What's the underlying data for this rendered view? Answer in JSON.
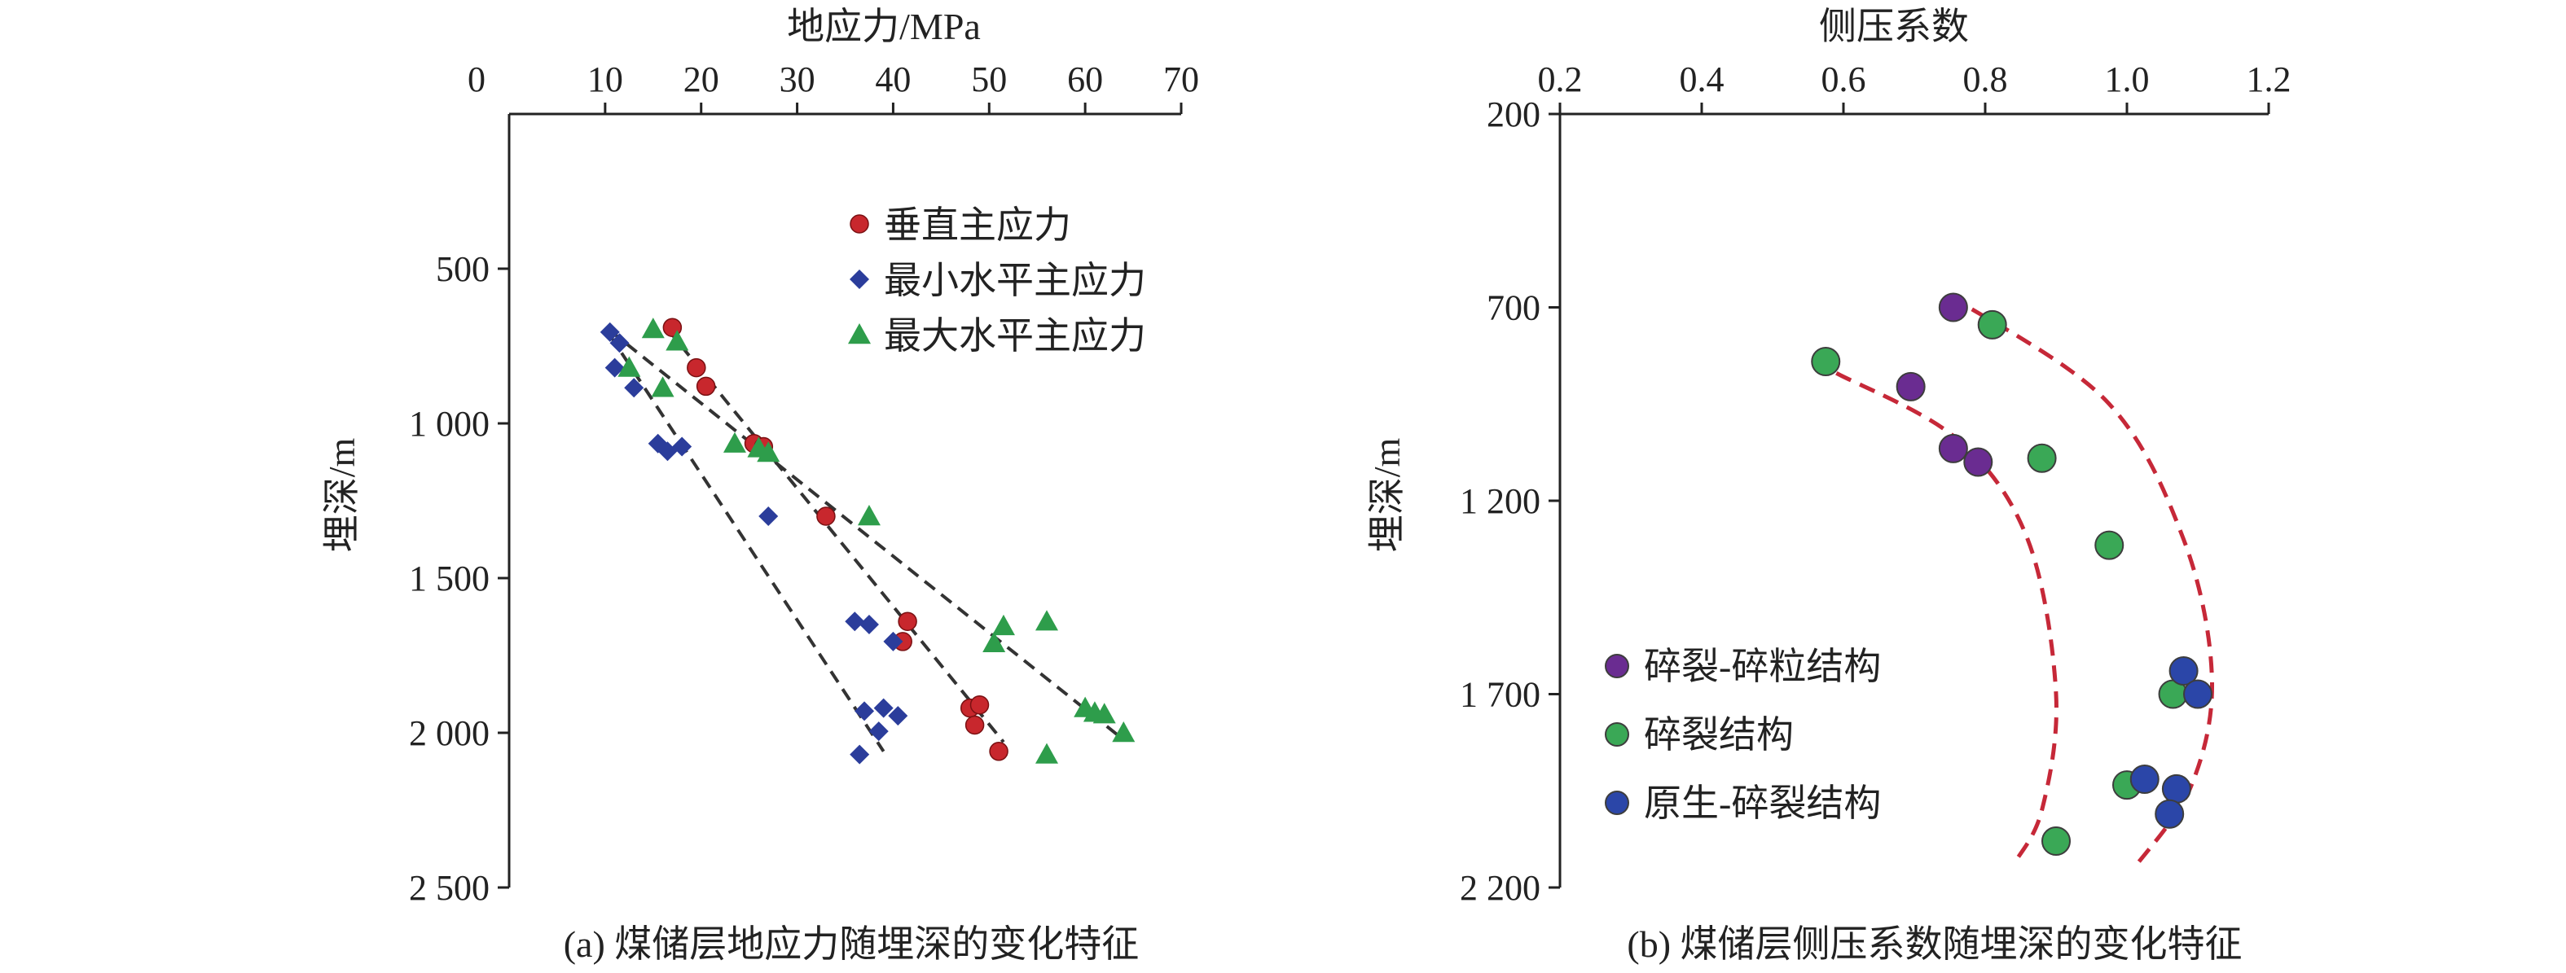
{
  "colors": {
    "vertical": "#c8272d",
    "min_horizontal": "#2b3d9b",
    "max_horizontal": "#2e9d4b",
    "purple": "#6a2c91",
    "green": "#3aa856",
    "blue": "#2b46a8",
    "trend_dash": "#333333",
    "envelope": "#c62838",
    "axis": "#222222"
  },
  "chart_data": [
    {
      "type": "scatter",
      "x_axis_position": "top",
      "y_inverted": true,
      "xlabel": "地应力/MPa",
      "ylabel": "埋深/m",
      "caption": "(a) 煤储层地应力随埋深的变化特征",
      "xlim": [
        0,
        70
      ],
      "ylim": [
        0,
        2500
      ],
      "x_ticks": [
        0,
        10,
        20,
        30,
        40,
        50,
        60,
        70
      ],
      "x_tick_labels": [
        "0",
        "10",
        "20",
        "30",
        "40",
        "50",
        "60",
        "70"
      ],
      "y_ticks": [
        500,
        1000,
        1500,
        2000,
        2500
      ],
      "y_tick_labels": [
        "500",
        "1 000",
        "1 500",
        "2 000",
        "2 500"
      ],
      "legend_position": "top-right",
      "series": [
        {
          "name": "垂直主应力",
          "marker": "circle",
          "points": [
            [
              17,
              690
            ],
            [
              19.5,
              820
            ],
            [
              20.5,
              880
            ],
            [
              25.5,
              1065
            ],
            [
              26.5,
              1075
            ],
            [
              33,
              1300
            ],
            [
              41.5,
              1640
            ],
            [
              41,
              1705
            ],
            [
              48,
              1920
            ],
            [
              49,
              1910
            ],
            [
              48.5,
              1975
            ],
            [
              51,
              2060
            ]
          ]
        },
        {
          "name": "最小水平主应力",
          "marker": "diamond",
          "points": [
            [
              10.5,
              705
            ],
            [
              11.5,
              740
            ],
            [
              11,
              820
            ],
            [
              13,
              885
            ],
            [
              15.5,
              1065
            ],
            [
              16.5,
              1090
            ],
            [
              18,
              1075
            ],
            [
              27,
              1300
            ],
            [
              36,
              1640
            ],
            [
              37.5,
              1650
            ],
            [
              40,
              1705
            ],
            [
              37,
              1930
            ],
            [
              39,
              1920
            ],
            [
              40.5,
              1945
            ],
            [
              38.5,
              1995
            ],
            [
              36.5,
              2070
            ]
          ]
        },
        {
          "name": "最大水平主应力",
          "marker": "triangle",
          "points": [
            [
              15,
              695
            ],
            [
              17.5,
              735
            ],
            [
              12.5,
              820
            ],
            [
              16,
              885
            ],
            [
              23.5,
              1065
            ],
            [
              26,
              1080
            ],
            [
              27,
              1095
            ],
            [
              37.5,
              1300
            ],
            [
              56,
              1640
            ],
            [
              51.5,
              1655
            ],
            [
              50.5,
              1710
            ],
            [
              60,
              1920
            ],
            [
              61,
              1935
            ],
            [
              62,
              1940
            ],
            [
              64,
              2000
            ],
            [
              56,
              2070
            ]
          ]
        }
      ],
      "trend_lines": [
        {
          "from": [
            10.5,
            700
          ],
          "to": [
            63.5,
            2010
          ]
        },
        {
          "from": [
            16.5,
            695
          ],
          "to": [
            51.5,
            2030
          ]
        },
        {
          "from": [
            10.5,
            715
          ],
          "to": [
            39,
            2060
          ]
        }
      ]
    },
    {
      "type": "scatter",
      "x_axis_position": "top",
      "y_inverted": true,
      "xlabel": "侧压系数",
      "ylabel": "埋深/m",
      "caption": "(b) 煤储层侧压系数随埋深的变化特征",
      "xlim": [
        0.2,
        1.2
      ],
      "ylim": [
        200,
        2200
      ],
      "x_ticks": [
        0.2,
        0.4,
        0.6,
        0.8,
        1.0,
        1.2
      ],
      "x_tick_labels": [
        "0.2",
        "0.4",
        "0.6",
        "0.8",
        "1.0",
        "1.2"
      ],
      "y_ticks": [
        200,
        700,
        1200,
        1700,
        2200
      ],
      "y_tick_labels": [
        "200",
        "700",
        "1 200",
        "1 700",
        "2 200"
      ],
      "legend_position": "bottom-left",
      "series": [
        {
          "name": "碎裂-碎粒结构",
          "marker": "circle",
          "points": [
            [
              0.755,
              700
            ],
            [
              0.695,
              905
            ],
            [
              0.755,
              1065
            ],
            [
              0.79,
              1100
            ]
          ]
        },
        {
          "name": "碎裂结构",
          "marker": "circle",
          "points": [
            [
              0.81,
              745
            ],
            [
              0.575,
              840
            ],
            [
              0.88,
              1090
            ],
            [
              0.975,
              1315
            ],
            [
              1.065,
              1700
            ],
            [
              1.0,
              1935
            ],
            [
              0.9,
              2080
            ]
          ]
        },
        {
          "name": "原生-碎裂结构",
          "marker": "circle",
          "points": [
            [
              1.08,
              1640
            ],
            [
              1.1,
              1700
            ],
            [
              1.025,
              1920
            ],
            [
              1.07,
              1945
            ],
            [
              1.06,
              2010
            ]
          ]
        }
      ],
      "envelope_curves": [
        [
          [
            0.59,
            870
          ],
          [
            0.76,
            1040
          ],
          [
            0.86,
            1300
          ],
          [
            0.9,
            1700
          ],
          [
            0.88,
            2000
          ],
          [
            0.84,
            2140
          ]
        ],
        [
          [
            0.75,
            670
          ],
          [
            0.97,
            940
          ],
          [
            1.08,
            1300
          ],
          [
            1.12,
            1660
          ],
          [
            1.09,
            1940
          ],
          [
            1.01,
            2150
          ]
        ]
      ]
    }
  ]
}
